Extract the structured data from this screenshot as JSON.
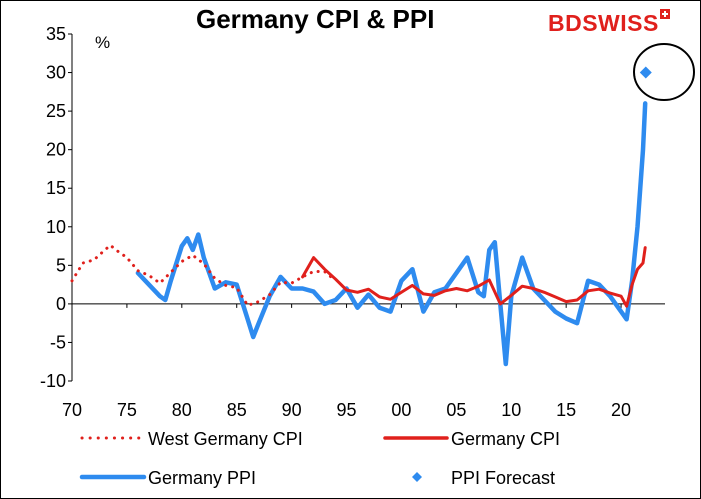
{
  "title": "Germany CPI & PPI",
  "brand": {
    "name": "BDSWISS",
    "color": "#e0201c"
  },
  "colors": {
    "red": "#e0201c",
    "blue": "#2e8bef",
    "annotation": "#000000"
  },
  "chart_data": {
    "type": "line",
    "title": "Germany CPI & PPI",
    "unit_label": "%",
    "xlabel": "",
    "ylabel": "",
    "x_unit": "year",
    "xlim": [
      1970,
      2024
    ],
    "ylim": [
      -10,
      35
    ],
    "y_ticks": [
      35,
      30,
      25,
      20,
      15,
      10,
      5,
      0,
      -5,
      -10
    ],
    "y_tick_labels": [
      "35",
      "30",
      "25",
      "20",
      "15",
      "10",
      "5",
      "0",
      "-5",
      "-10"
    ],
    "x_ticks": [
      1970,
      1975,
      1980,
      1985,
      1990,
      1995,
      2000,
      2005,
      2010,
      2015,
      2020
    ],
    "x_tick_labels": [
      "70",
      "75",
      "80",
      "85",
      "90",
      "95",
      "00",
      "05",
      "10",
      "15",
      "20"
    ],
    "grid": false,
    "legend_position": "bottom",
    "annotation": "circle around PPI Forecast",
    "series": [
      {
        "name": "West Germany CPI",
        "style": "dotted",
        "color": "#e0201c",
        "x": [
          1970,
          1971,
          1972,
          1973,
          1973.5,
          1974,
          1975,
          1976,
          1977,
          1978,
          1979,
          1980,
          1981,
          1982,
          1983,
          1984,
          1985,
          1986,
          1987,
          1988,
          1989,
          1990,
          1991,
          1992,
          1993,
          1994
        ],
        "y": [
          3,
          5.3,
          5.7,
          7,
          7.6,
          7,
          6,
          4.3,
          3.7,
          2.7,
          4.1,
          5.5,
          6.3,
          5.2,
          3.3,
          2.4,
          2.1,
          -0.2,
          0.3,
          1.2,
          2.8,
          2.7,
          3.5,
          4.2,
          4.2,
          3
        ]
      },
      {
        "name": "Germany CPI",
        "style": "solid",
        "color": "#e0201c",
        "x": [
          1991,
          1992,
          1993,
          1994,
          1995,
          1996,
          1997,
          1998,
          1999,
          2000,
          2001,
          2002,
          2003,
          2004,
          2005,
          2006,
          2007,
          2008,
          2009,
          2010,
          2011,
          2012,
          2013,
          2014,
          2015,
          2016,
          2017,
          2018,
          2019,
          2020,
          2020.5,
          2021,
          2021.5,
          2022,
          2022.2
        ],
        "y": [
          3.5,
          6,
          4.5,
          3.2,
          1.8,
          1.5,
          1.9,
          0.9,
          0.6,
          1.5,
          2.4,
          1.3,
          1.1,
          1.7,
          2,
          1.7,
          2.3,
          3.1,
          0,
          1.1,
          2.3,
          2,
          1.5,
          0.9,
          0.3,
          0.5,
          1.7,
          1.9,
          1.4,
          1,
          -0.3,
          2.5,
          4.5,
          5.3,
          7.3
        ]
      },
      {
        "name": "Germany PPI",
        "style": "solid",
        "color": "#2e8bef",
        "x": [
          1976,
          1977,
          1978,
          1978.5,
          1979,
          1980,
          1980.5,
          1981,
          1981.5,
          1982,
          1983,
          1984,
          1985,
          1986,
          1986.5,
          1987,
          1988,
          1989,
          1990,
          1991,
          1992,
          1993,
          1994,
          1995,
          1996,
          1997,
          1998,
          1999,
          2000,
          2001,
          2002,
          2003,
          2004,
          2005,
          2006,
          2007,
          2007.5,
          2008,
          2008.5,
          2009,
          2009.5,
          2010,
          2011,
          2012,
          2013,
          2014,
          2015,
          2016,
          2017,
          2018,
          2019,
          2020,
          2020.5,
          2021,
          2021.5,
          2022,
          2022.2
        ],
        "y": [
          4,
          2.5,
          1,
          0.5,
          3,
          7.5,
          8.5,
          7,
          9,
          6,
          2,
          2.8,
          2.5,
          -2,
          -4.3,
          -2.5,
          1,
          3.5,
          2,
          2,
          1.6,
          0,
          0.5,
          2,
          -0.5,
          1.2,
          -0.5,
          -1,
          3,
          4.5,
          -1,
          1.5,
          2,
          4,
          6,
          1.5,
          1,
          7,
          8,
          0,
          -7.8,
          1,
          6,
          2,
          0.5,
          -1,
          -1.9,
          -2.5,
          3,
          2.5,
          1,
          -1,
          -2,
          3,
          10,
          20,
          26
        ]
      },
      {
        "name": "PPI Forecast",
        "style": "marker",
        "color": "#2e8bef",
        "x": [
          2022.25
        ],
        "y": [
          30
        ]
      }
    ],
    "legend": [
      {
        "label": "West Germany CPI",
        "style": "dotted",
        "color": "#e0201c"
      },
      {
        "label": "Germany CPI",
        "style": "solid",
        "color": "#e0201c"
      },
      {
        "label": "Germany PPI",
        "style": "solid",
        "color": "#2e8bef"
      },
      {
        "label": "PPI Forecast",
        "style": "marker",
        "color": "#2e8bef"
      }
    ]
  }
}
